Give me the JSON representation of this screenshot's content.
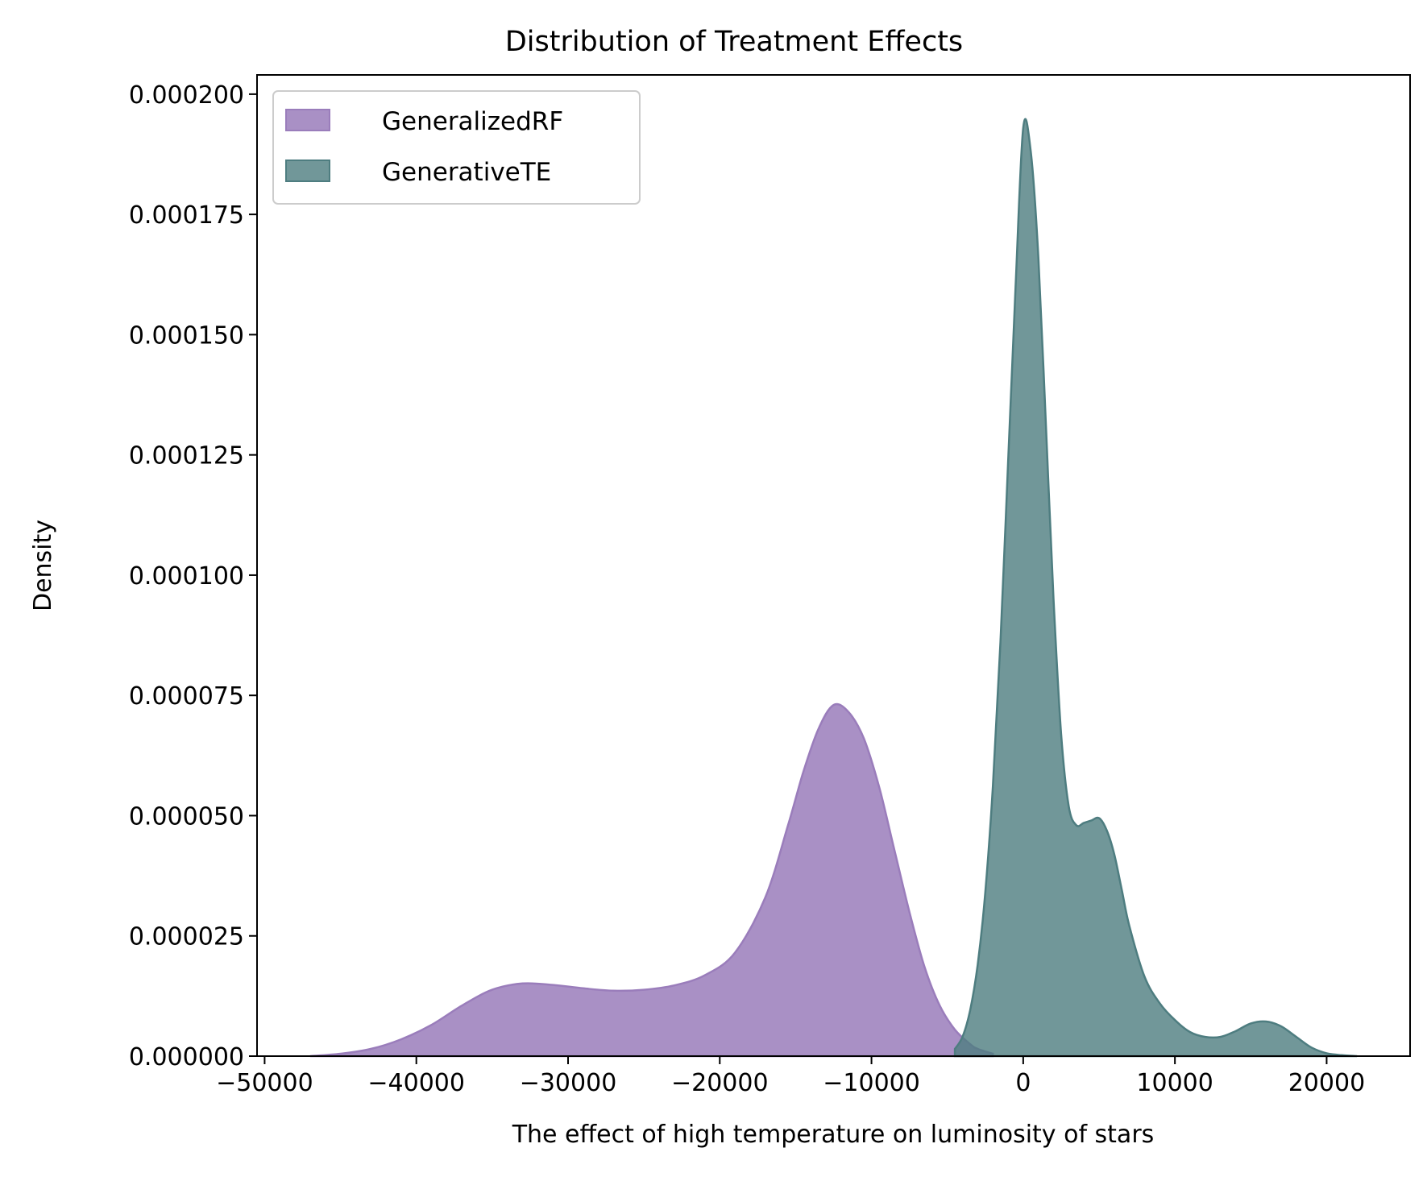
{
  "chart_data": {
    "type": "area",
    "title": "Distribution of Treatment Effects",
    "xlabel": "The effect of high temperature on luminosity of stars",
    "ylabel": "Density",
    "xlim": [
      -50500,
      25500
    ],
    "ylim": [
      0,
      0.000204
    ],
    "xticks": [
      -50000,
      -40000,
      -30000,
      -20000,
      -10000,
      0,
      10000,
      20000
    ],
    "xtick_labels": [
      "−50000",
      "−40000",
      "−30000",
      "−20000",
      "−10000",
      "0",
      "10000",
      "20000"
    ],
    "yticks": [
      0,
      2.5e-05,
      5e-05,
      7.5e-05,
      0.0001,
      0.000125,
      0.00015,
      0.000175,
      0.0002
    ],
    "ytick_labels": [
      "0.000000",
      "0.000025",
      "0.000050",
      "0.000075",
      "0.000100",
      "0.000125",
      "0.000150",
      "0.000175",
      "0.000200"
    ],
    "grid": false,
    "legend": "top-left",
    "series": [
      {
        "name": "GeneralizedRF",
        "color": "#9a7dbb",
        "x": [
          -47000,
          -45000,
          -43000,
          -41000,
          -39000,
          -37000,
          -35000,
          -33000,
          -31000,
          -29000,
          -27000,
          -25000,
          -23000,
          -21000,
          -19000,
          -17000,
          -15500,
          -14500,
          -13500,
          -12500,
          -11500,
          -10500,
          -9500,
          -8500,
          -7500,
          -6500,
          -5500,
          -4500,
          -3500,
          -3000,
          -2000
        ],
        "y": [
          0.0,
          5e-07,
          1.5e-06,
          3.5e-06,
          6.5e-06,
          1.05e-05,
          1.38e-05,
          1.51e-05,
          1.48e-05,
          1.41e-05,
          1.36e-05,
          1.38e-05,
          1.47e-05,
          1.68e-05,
          2.15e-05,
          3.3e-05,
          4.8e-05,
          5.9e-05,
          6.8e-05,
          7.3e-05,
          7.15e-05,
          6.6e-05,
          5.6e-05,
          4.3e-05,
          3e-05,
          1.85e-05,
          1.05e-05,
          5.5e-06,
          2.5e-06,
          1.5e-06,
          5e-07
        ]
      },
      {
        "name": "GenerativeTE",
        "color": "#4e7d80",
        "x": [
          -4500,
          -4000,
          -3500,
          -3000,
          -2500,
          -2000,
          -1500,
          -1000,
          -500,
          0,
          500,
          1000,
          1500,
          2000,
          2500,
          3000,
          3500,
          4000,
          4500,
          5000,
          5500,
          6000,
          6500,
          7000,
          8000,
          9000,
          10000,
          11000,
          12000,
          13000,
          14000,
          15000,
          16000,
          17000,
          18000,
          19000,
          20000,
          21000,
          22000
        ],
        "y": [
          1.5e-06,
          4e-06,
          9.5e-06,
          1.9e-05,
          3.4e-05,
          5.6e-05,
          8.6e-05,
          0.000123,
          0.00016,
          0.000193,
          0.000188,
          0.000166,
          0.000131,
          9.5e-05,
          6.7e-05,
          5.2e-05,
          4.8e-05,
          4.85e-05,
          4.9e-05,
          4.95e-05,
          4.7e-05,
          4.2e-05,
          3.45e-05,
          2.7e-05,
          1.65e-05,
          1.1e-05,
          7.5e-06,
          5e-06,
          4e-06,
          4e-06,
          5.2e-06,
          6.8e-06,
          7.2e-06,
          6.2e-06,
          4e-06,
          1.8e-06,
          6e-07,
          2e-07,
          0.0
        ]
      }
    ]
  }
}
